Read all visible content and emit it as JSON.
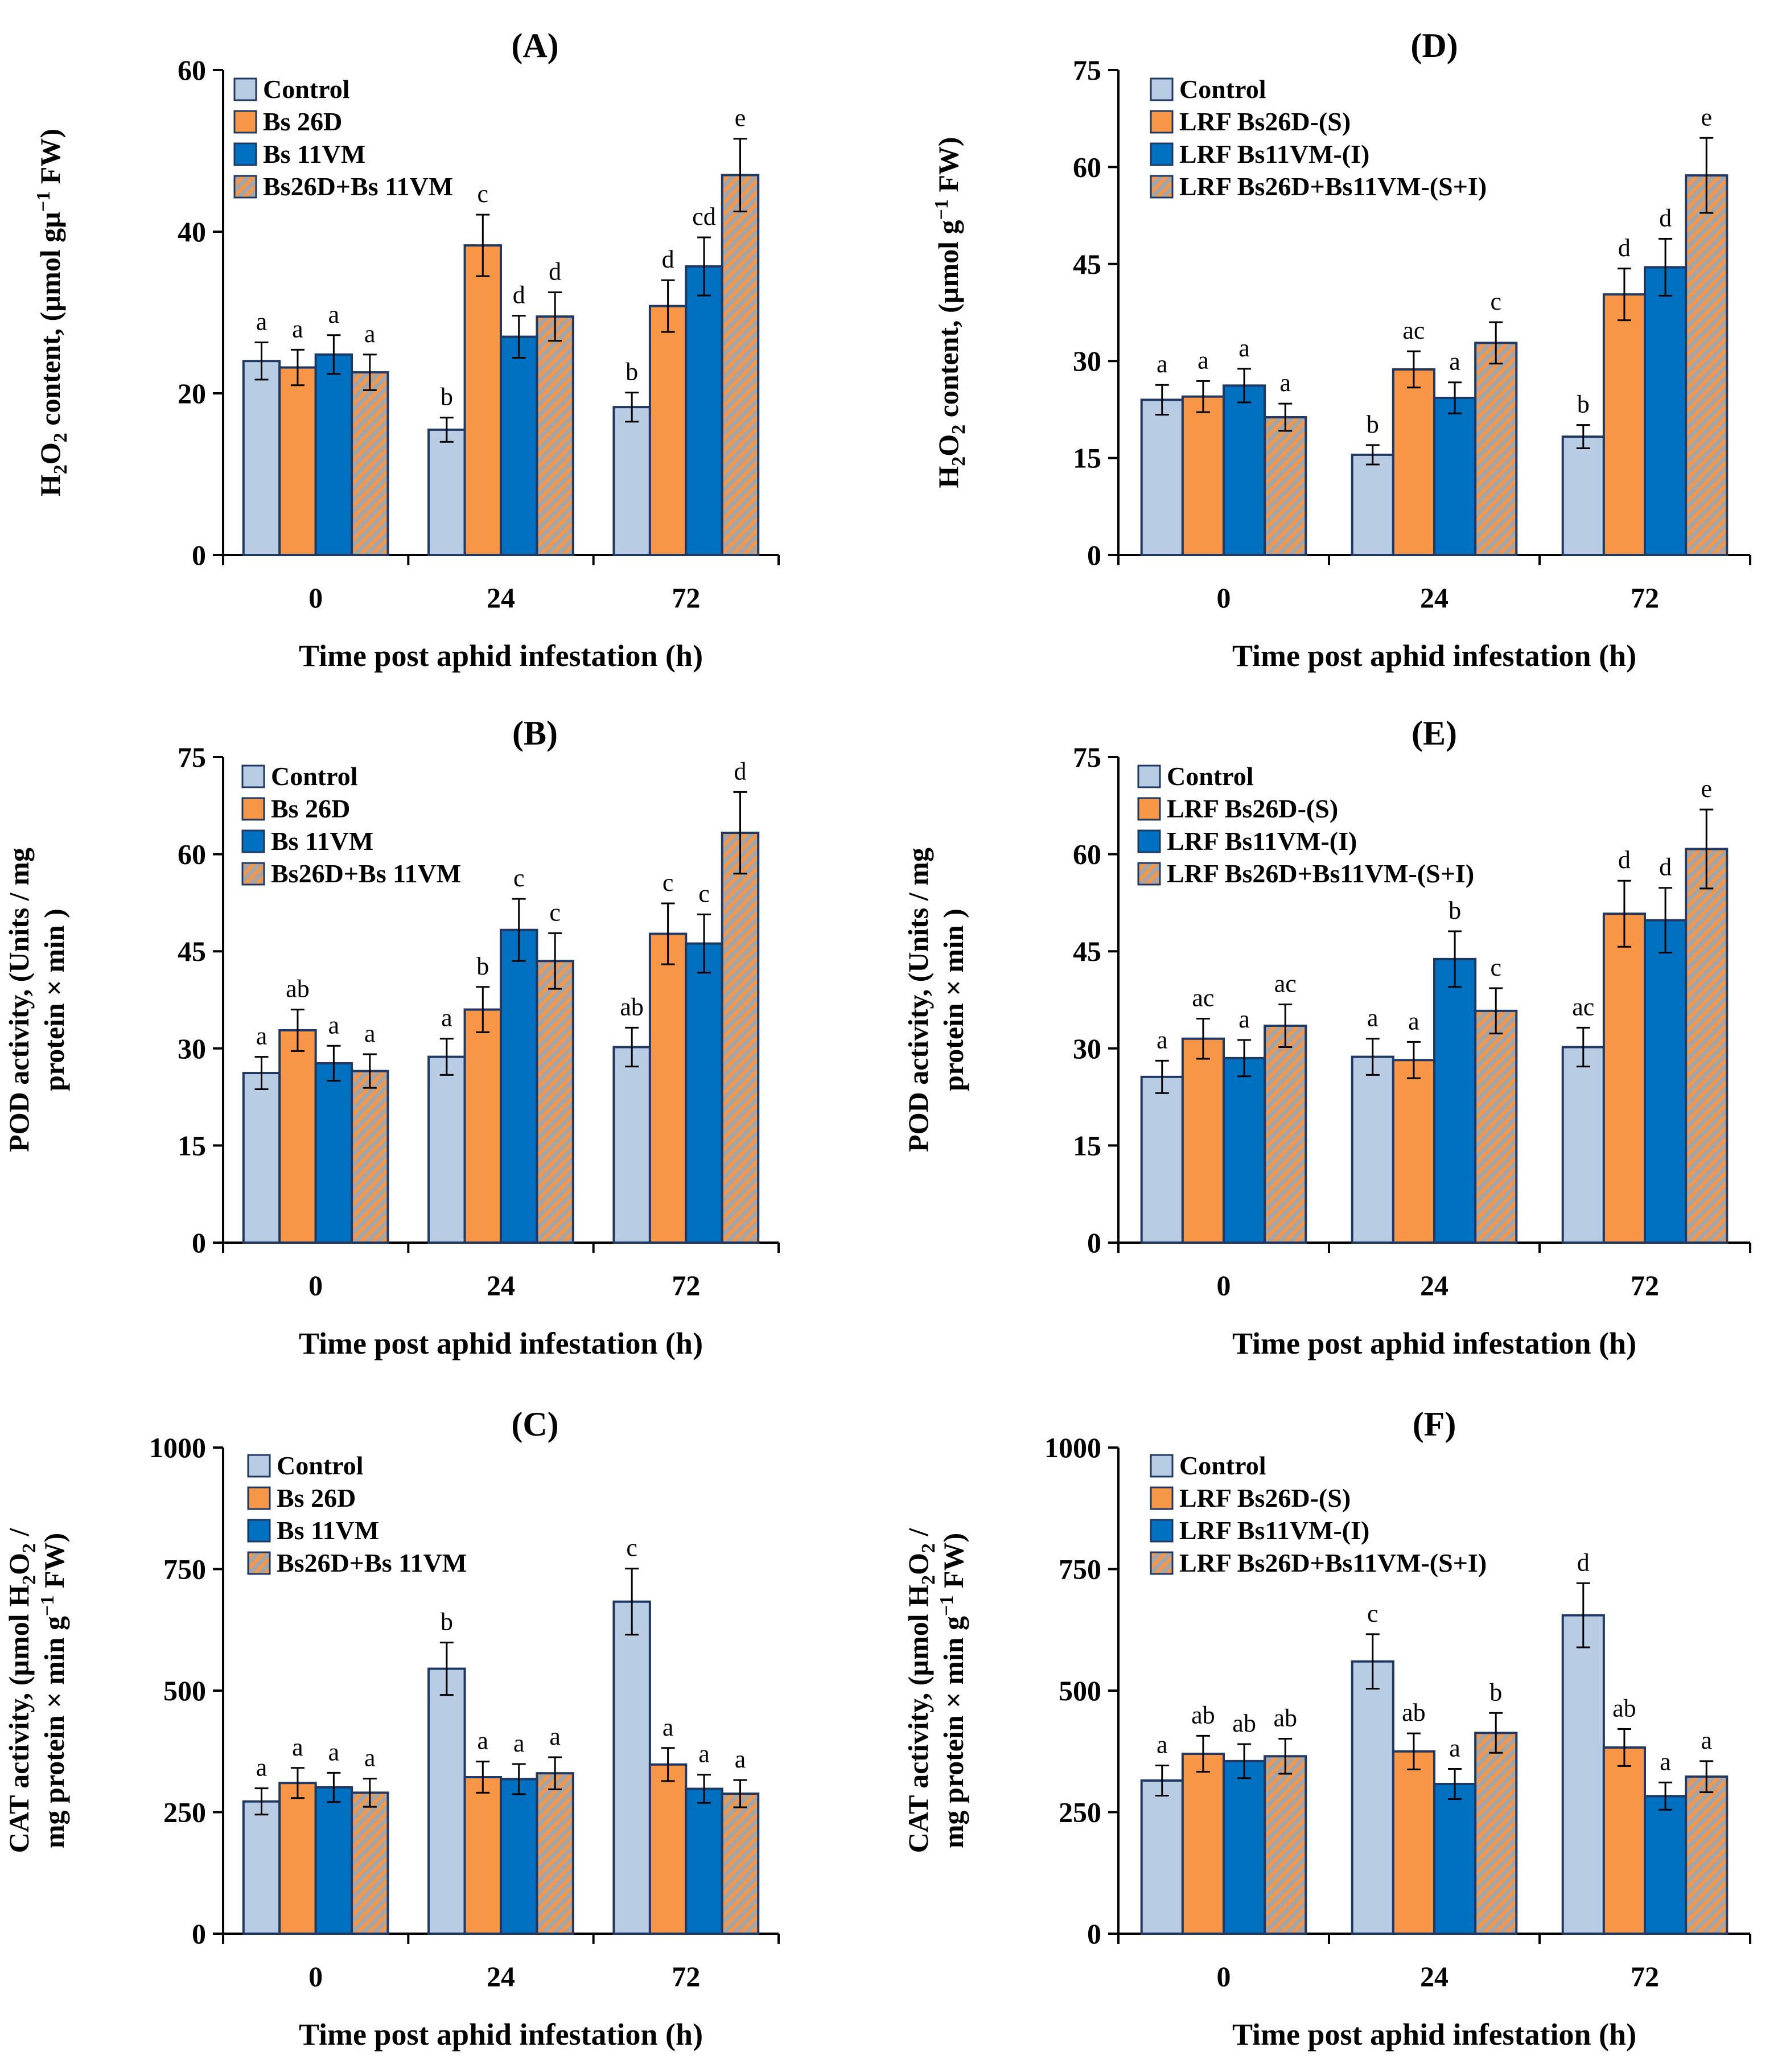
{
  "colors": {
    "control": "#b8cce4",
    "bs26d": "#f79646",
    "bs11vm": "#0070c0",
    "combo_base": "#a5a5a5",
    "combo_stripe": "#f79646",
    "edge": "#1f3864",
    "axis": "#000000"
  },
  "chart_data": [
    {
      "type": "bar",
      "title": "(A)",
      "xlabel": "Time post aphid infestation (h)",
      "ylabel": [
        "H2O2 content, (µmol gµ⁻¹ FW)"
      ],
      "ylim": [
        0,
        60
      ],
      "yticks": [
        "0",
        "20",
        "40",
        "60"
      ],
      "categories": [
        "0",
        "24",
        "72"
      ],
      "series": [
        {
          "name": "Control",
          "values": [
            24,
            15.5,
            18.3
          ],
          "errors": [
            2.3,
            1.5,
            1.8
          ],
          "letters": [
            "a",
            "b",
            "b"
          ]
        },
        {
          "name": "Bs 26D",
          "values": [
            23.2,
            38.3,
            30.8
          ],
          "errors": [
            2.2,
            3.8,
            3.2
          ],
          "letters": [
            "a",
            "c",
            "d"
          ]
        },
        {
          "name": "Bs 11VM",
          "values": [
            24.8,
            27,
            35.7
          ],
          "errors": [
            2.4,
            2.6,
            3.6
          ],
          "letters": [
            "a",
            "d",
            "cd"
          ]
        },
        {
          "name": "Bs26D+Bs 11VM",
          "values": [
            22.6,
            29.5,
            47
          ],
          "errors": [
            2.2,
            3,
            4.5
          ],
          "letters": [
            "a",
            "d",
            "e"
          ]
        }
      ]
    },
    {
      "type": "bar",
      "title": "(B)",
      "xlabel": "Time post aphid infestation (h)",
      "ylabel": [
        "POD activity, (Units / mg",
        "protein × min )"
      ],
      "ylim": [
        0,
        75
      ],
      "yticks": [
        "0",
        "15",
        "30",
        "45",
        "60",
        "75"
      ],
      "categories": [
        "0",
        "24",
        "72"
      ],
      "series": [
        {
          "name": "Control",
          "values": [
            26.2,
            28.7,
            30.2
          ],
          "errors": [
            2.5,
            2.8,
            3
          ],
          "letters": [
            "a",
            "a",
            "ab"
          ]
        },
        {
          "name": "Bs 26D",
          "values": [
            32.8,
            36,
            47.7
          ],
          "errors": [
            3.2,
            3.5,
            4.7
          ],
          "letters": [
            "ab",
            "b",
            "c"
          ]
        },
        {
          "name": "Bs 11VM",
          "values": [
            27.7,
            48.3,
            46.2
          ],
          "errors": [
            2.7,
            4.8,
            4.5
          ],
          "letters": [
            "a",
            "c",
            "c"
          ]
        },
        {
          "name": "Bs26D+Bs 11VM",
          "values": [
            26.5,
            43.5,
            63.3
          ],
          "errors": [
            2.6,
            4.3,
            6.3
          ],
          "letters": [
            "a",
            "c",
            "d"
          ]
        }
      ]
    },
    {
      "type": "bar",
      "title": "(C)",
      "xlabel": "Time post aphid infestation (h)",
      "ylabel": [
        "CAT activity, (µmol H2O2 /",
        "mg protein × min g⁻¹ FW)"
      ],
      "ylim": [
        0,
        1000
      ],
      "yticks": [
        "0",
        "250",
        "500",
        "750",
        "1000"
      ],
      "categories": [
        "0",
        "24",
        "72"
      ],
      "series": [
        {
          "name": "Control",
          "values": [
            272,
            545,
            683
          ],
          "errors": [
            27,
            54,
            68
          ],
          "letters": [
            "a",
            "b",
            "c"
          ]
        },
        {
          "name": "Bs 26D",
          "values": [
            310,
            322,
            348
          ],
          "errors": [
            31,
            32,
            34
          ],
          "letters": [
            "a",
            "a",
            "a"
          ]
        },
        {
          "name": "Bs 11VM",
          "values": [
            301,
            318,
            298
          ],
          "errors": [
            30,
            31,
            29
          ],
          "letters": [
            "a",
            "a",
            "a"
          ]
        },
        {
          "name": "Bs26D+Bs 11VM",
          "values": [
            290,
            330,
            288
          ],
          "errors": [
            29,
            33,
            28
          ],
          "letters": [
            "a",
            "a",
            "a"
          ]
        }
      ]
    },
    {
      "type": "bar",
      "title": "(D)",
      "xlabel": "Time post aphid infestation (h)",
      "ylabel": [
        "H2O2 content, (µmol g⁻¹ FW)"
      ],
      "ylim": [
        0,
        75
      ],
      "yticks": [
        "0",
        "15",
        "30",
        "45",
        "60",
        "75"
      ],
      "categories": [
        "0",
        "24",
        "72"
      ],
      "series": [
        {
          "name": "Control",
          "values": [
            24,
            15.5,
            18.3
          ],
          "errors": [
            2.3,
            1.5,
            1.8
          ],
          "letters": [
            "a",
            "b",
            "b"
          ]
        },
        {
          "name": "LRF Bs26D-(S)",
          "values": [
            24.5,
            28.7,
            40.3
          ],
          "errors": [
            2.4,
            2.8,
            4
          ],
          "letters": [
            "a",
            "ac",
            "d"
          ]
        },
        {
          "name": "LRF Bs11VM-(I)",
          "values": [
            26.2,
            24.3,
            44.5
          ],
          "errors": [
            2.6,
            2.4,
            4.4
          ],
          "letters": [
            "a",
            "a",
            "d"
          ]
        },
        {
          "name": "LRF Bs26D+Bs11VM-(S+I)",
          "values": [
            21.3,
            32.8,
            58.7
          ],
          "errors": [
            2.1,
            3.2,
            5.8
          ],
          "letters": [
            "a",
            "c",
            "e"
          ]
        }
      ]
    },
    {
      "type": "bar",
      "title": "(E)",
      "xlabel": "Time post aphid infestation (h)",
      "ylabel": [
        "POD activity, (Units / mg",
        "protein × min )"
      ],
      "ylim": [
        0,
        75
      ],
      "yticks": [
        "0",
        "15",
        "30",
        "45",
        "60",
        "75"
      ],
      "categories": [
        "0",
        "24",
        "72"
      ],
      "series": [
        {
          "name": "Control",
          "values": [
            25.6,
            28.7,
            30.2
          ],
          "errors": [
            2.5,
            2.8,
            3
          ],
          "letters": [
            "a",
            "a",
            "ac"
          ]
        },
        {
          "name": "LRF Bs26D-(S)",
          "values": [
            31.5,
            28.2,
            50.8
          ],
          "errors": [
            3.1,
            2.8,
            5.1
          ],
          "letters": [
            "ac",
            "a",
            "d"
          ]
        },
        {
          "name": "LRF Bs11VM-(I)",
          "values": [
            28.5,
            43.8,
            49.8
          ],
          "errors": [
            2.8,
            4.3,
            5
          ],
          "letters": [
            "a",
            "b",
            "d"
          ]
        },
        {
          "name": "LRF Bs26D+Bs11VM-(S+I)",
          "values": [
            33.5,
            35.8,
            60.8
          ],
          "errors": [
            3.3,
            3.5,
            6.1
          ],
          "letters": [
            "ac",
            "c",
            "e"
          ]
        }
      ]
    },
    {
      "type": "bar",
      "title": "(F)",
      "xlabel": "Time post aphid infestation (h)",
      "ylabel": [
        "CAT activity, (µmol H2O2 /",
        "mg protein × min g⁻¹ FW)"
      ],
      "ylim": [
        0,
        1000
      ],
      "yticks": [
        "0",
        "250",
        "500",
        "750",
        "1000"
      ],
      "categories": [
        "0",
        "24",
        "72"
      ],
      "series": [
        {
          "name": "Control",
          "values": [
            315,
            560,
            655
          ],
          "errors": [
            31,
            56,
            66
          ],
          "letters": [
            "a",
            "c",
            "d"
          ]
        },
        {
          "name": "LRF Bs26D-(S)",
          "values": [
            370,
            375,
            383
          ],
          "errors": [
            37,
            37,
            38
          ],
          "letters": [
            "ab",
            "ab",
            "ab"
          ]
        },
        {
          "name": "LRF Bs11VM-(I)",
          "values": [
            355,
            308,
            283
          ],
          "errors": [
            35,
            31,
            28
          ],
          "letters": [
            "ab",
            "a",
            "a"
          ]
        },
        {
          "name": "LRF Bs26D+Bs11VM-(S+I)",
          "values": [
            365,
            413,
            323
          ],
          "errors": [
            36,
            41,
            32
          ],
          "letters": [
            "ab",
            "b",
            "a"
          ]
        }
      ]
    }
  ]
}
